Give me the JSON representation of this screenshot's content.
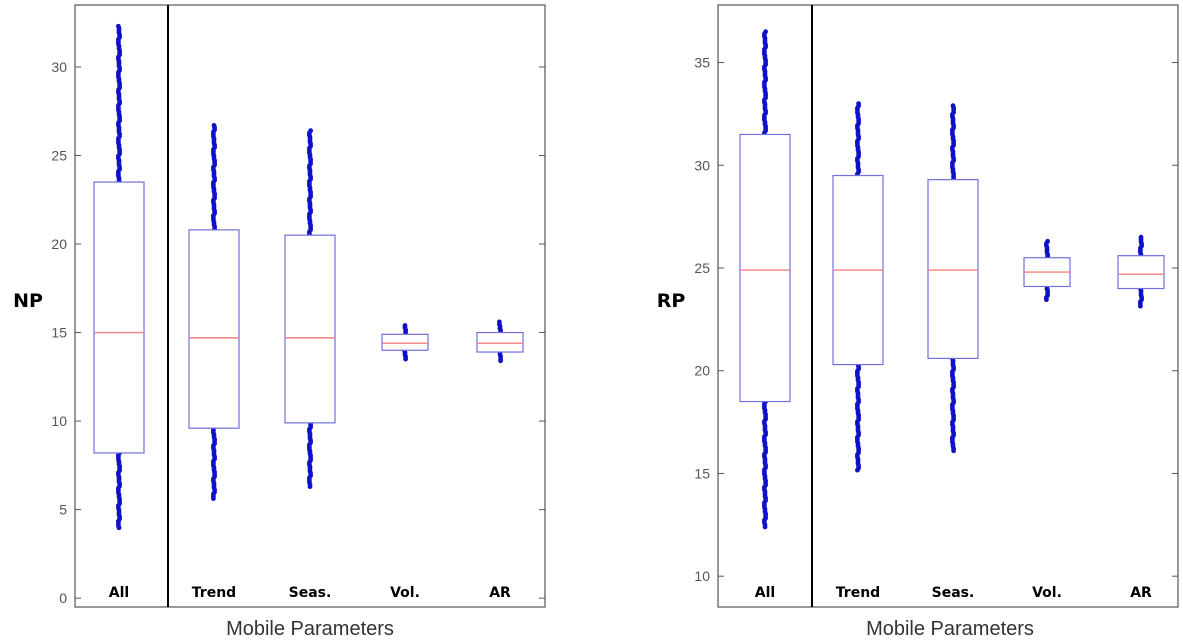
{
  "chart_data": [
    {
      "type": "box",
      "ylabel": "NP",
      "xlabel": "Mobile Parameters",
      "ylim": [
        -0.5,
        33.5
      ],
      "yticks": [
        0,
        5,
        10,
        15,
        20,
        25,
        30
      ],
      "categories": [
        "All",
        "Trend",
        "Seas.",
        "Vol.",
        "AR"
      ],
      "separator_after": "All",
      "boxes": [
        {
          "category": "All",
          "q1": 8.2,
          "median": 15.0,
          "q3": 23.5,
          "whisker_low": 8.2,
          "whisker_high": 23.5,
          "outliers_low": [
            3.9,
            8.2
          ],
          "outliers_high": [
            23.5,
            32.3
          ]
        },
        {
          "category": "Trend",
          "q1": 9.6,
          "median": 14.7,
          "q3": 20.8,
          "whisker_low": 9.6,
          "whisker_high": 20.8,
          "outliers_low": [
            5.5,
            9.6
          ],
          "outliers_high": [
            20.8,
            26.7
          ]
        },
        {
          "category": "Seas.",
          "q1": 9.9,
          "median": 14.7,
          "q3": 20.5,
          "whisker_low": 9.9,
          "whisker_high": 20.5,
          "outliers_low": [
            6.2,
            9.9
          ],
          "outliers_high": [
            20.5,
            26.4
          ]
        },
        {
          "category": "Vol.",
          "q1": 14.0,
          "median": 14.4,
          "q3": 14.9,
          "whisker_low": 14.0,
          "whisker_high": 14.9,
          "outliers_low": [
            13.5,
            14.0
          ],
          "outliers_high": [
            14.9,
            15.4
          ]
        },
        {
          "category": "AR",
          "q1": 13.9,
          "median": 14.4,
          "q3": 15.0,
          "whisker_low": 13.9,
          "whisker_high": 15.0,
          "outliers_low": [
            13.3,
            13.9
          ],
          "outliers_high": [
            15.0,
            15.6
          ]
        }
      ]
    },
    {
      "type": "box",
      "ylabel": "RP",
      "xlabel": "Mobile Parameters",
      "ylim": [
        8.5,
        37.8
      ],
      "yticks": [
        10,
        15,
        20,
        25,
        30,
        35
      ],
      "categories": [
        "All",
        "Trend",
        "Seas.",
        "Vol.",
        "AR"
      ],
      "separator_after": "All",
      "boxes": [
        {
          "category": "All",
          "q1": 18.5,
          "median": 24.9,
          "q3": 31.5,
          "whisker_low": 18.5,
          "whisker_high": 31.5,
          "outliers_low": [
            12.3,
            18.5
          ],
          "outliers_high": [
            31.5,
            36.5
          ]
        },
        {
          "category": "Trend",
          "q1": 20.3,
          "median": 24.9,
          "q3": 29.5,
          "whisker_low": 20.3,
          "whisker_high": 29.5,
          "outliers_low": [
            15.1,
            20.3
          ],
          "outliers_high": [
            29.5,
            33.0
          ]
        },
        {
          "category": "Seas.",
          "q1": 20.6,
          "median": 24.9,
          "q3": 29.3,
          "whisker_low": 20.6,
          "whisker_high": 29.3,
          "outliers_low": [
            16.0,
            20.6
          ],
          "outliers_high": [
            29.3,
            32.9
          ]
        },
        {
          "category": "Vol.",
          "q1": 24.1,
          "median": 24.8,
          "q3": 25.5,
          "whisker_low": 24.1,
          "whisker_high": 25.5,
          "outliers_low": [
            23.4,
            24.1
          ],
          "outliers_high": [
            25.5,
            26.3
          ]
        },
        {
          "category": "AR",
          "q1": 24.0,
          "median": 24.7,
          "q3": 25.6,
          "whisker_low": 24.0,
          "whisker_high": 25.6,
          "outliers_low": [
            23.1,
            24.0
          ],
          "outliers_high": [
            25.6,
            26.5
          ]
        }
      ]
    }
  ],
  "colors": {
    "box": "#7070e0",
    "median": "#f08080",
    "outlier": "#1010c8",
    "axis": "#555555",
    "separator": "#000000"
  }
}
